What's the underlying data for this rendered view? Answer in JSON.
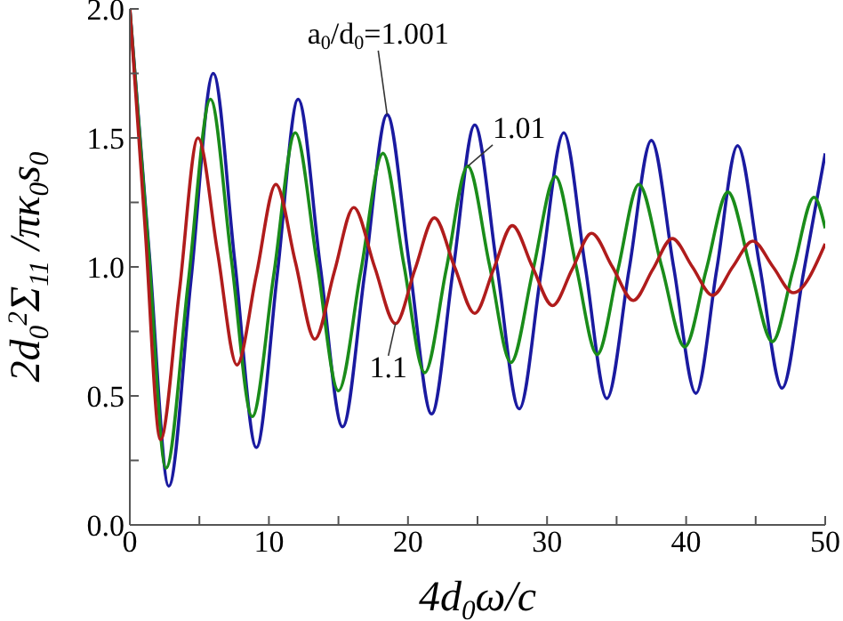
{
  "chart_data": {
    "type": "line",
    "xlabel": "4d$_{0}$ω/c",
    "ylabel": "2d$_{0}$$^{2}$Σ$_{11}$ /πκ$_{0}$s$_{0}$",
    "xlim": [
      0,
      50
    ],
    "ylim": [
      0,
      2
    ],
    "xticks": [
      0,
      {
        "value": 5,
        "label": null
      },
      10,
      {
        "value": 15,
        "label": null
      },
      20,
      {
        "value": 25,
        "label": null
      },
      30,
      {
        "value": 35,
        "label": null
      },
      40,
      {
        "value": 45,
        "label": null
      },
      50
    ],
    "yticks": [
      {
        "value": 0,
        "label": "0.0"
      },
      {
        "value": 0.25,
        "label": null
      },
      {
        "value": 0.5,
        "label": "0.5"
      },
      {
        "value": 0.75,
        "label": null
      },
      {
        "value": 1,
        "label": "1.0"
      },
      {
        "value": 1.25,
        "label": null
      },
      {
        "value": 1.5,
        "label": "1.5"
      },
      {
        "value": 1.75,
        "label": null
      },
      {
        "value": 2,
        "label": "2.0"
      }
    ],
    "grid": false,
    "legend": false,
    "marker": "none",
    "line_style": "solid",
    "annotations": [
      {
        "text": "a$_{0}$/d$_{0}$=1.001",
        "x": 18.5,
        "y": 1.59
      },
      {
        "text": "1.01",
        "x": 24.3,
        "y": 1.39
      },
      {
        "text": "1.1",
        "x": 19.1,
        "y": 0.78
      }
    ],
    "series": [
      {
        "color": "#1a1aa0",
        "x": [
          0,
          1.4,
          2.8,
          4.4,
          6.0,
          7.55,
          9.1,
          10.6,
          12.1,
          13.7,
          15.3,
          16.9,
          18.5,
          20.1,
          21.7,
          23.25,
          24.8,
          26.4,
          28.0,
          29.6,
          31.2,
          32.75,
          34.3,
          35.9,
          37.5,
          39.1,
          40.7,
          42.2,
          43.7,
          45.3,
          46.9,
          48.45,
          50
        ],
        "values": [
          2.0,
          1.05,
          0.15,
          0.95,
          1.75,
          1.02,
          0.3,
          0.97,
          1.65,
          1.0,
          0.38,
          0.98,
          1.59,
          1.01,
          0.43,
          0.99,
          1.55,
          1.0,
          0.45,
          0.99,
          1.52,
          1.0,
          0.49,
          0.99,
          1.49,
          1.0,
          0.51,
          0.99,
          1.47,
          1.0,
          0.53,
          0.98,
          1.44
        ]
      },
      {
        "color": "#1a8c1a",
        "x": [
          0,
          1.3,
          2.6,
          4.2,
          5.8,
          7.3,
          8.8,
          10.35,
          11.9,
          13.45,
          15.0,
          16.6,
          18.2,
          19.7,
          21.2,
          22.75,
          24.3,
          25.85,
          27.4,
          29.0,
          30.6,
          32.1,
          33.6,
          35.1,
          36.6,
          38.25,
          39.9,
          41.45,
          43.0,
          44.6,
          46.2,
          47.7,
          49.2,
          50
        ],
        "values": [
          2.0,
          1.1,
          0.22,
          0.94,
          1.65,
          1.03,
          0.42,
          0.97,
          1.52,
          1.02,
          0.52,
          0.98,
          1.44,
          1.01,
          0.59,
          0.99,
          1.39,
          1.01,
          0.63,
          0.99,
          1.35,
          1.0,
          0.66,
          0.99,
          1.32,
          1.0,
          0.69,
          0.99,
          1.29,
          1.0,
          0.71,
          0.99,
          1.27,
          1.15
        ]
      },
      {
        "color": "#b01c1c",
        "x": [
          0,
          1.1,
          2.2,
          3.55,
          4.9,
          6.3,
          7.7,
          9.1,
          10.5,
          11.9,
          13.3,
          14.7,
          16.1,
          17.6,
          19.1,
          20.5,
          21.9,
          23.35,
          24.8,
          26.15,
          27.5,
          28.95,
          30.4,
          31.8,
          33.2,
          34.7,
          36.2,
          37.6,
          39.0,
          40.45,
          41.9,
          43.35,
          44.8,
          46.25,
          47.7,
          50
        ],
        "values": [
          2.0,
          1.15,
          0.33,
          0.9,
          1.5,
          1.06,
          0.62,
          0.97,
          1.32,
          1.02,
          0.72,
          0.98,
          1.23,
          1.0,
          0.78,
          0.99,
          1.19,
          1.0,
          0.82,
          0.99,
          1.16,
          1.0,
          0.85,
          0.99,
          1.13,
          1.0,
          0.87,
          0.99,
          1.11,
          1.0,
          0.89,
          1.0,
          1.1,
          1.0,
          0.9,
          1.09
        ]
      }
    ]
  }
}
